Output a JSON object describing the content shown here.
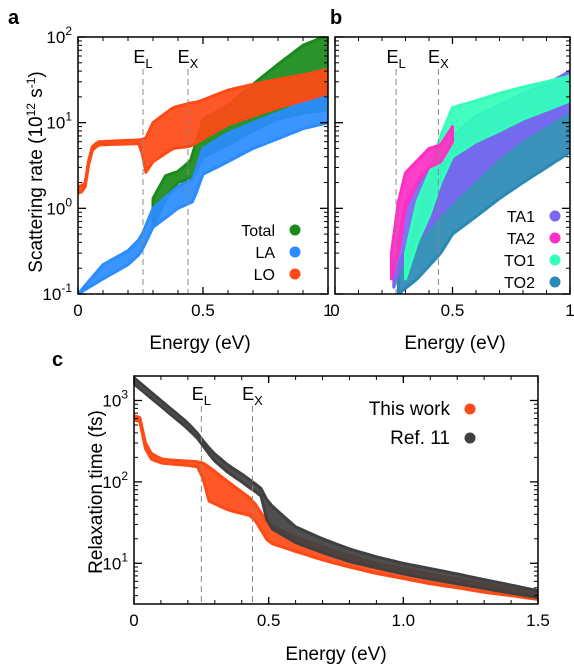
{
  "panels": [
    "a",
    "b",
    "c"
  ],
  "chart_data": [
    {
      "panel": "a",
      "type": "scatter",
      "xlabel": "Energy (eV)",
      "ylabel_prefix": "Scattering rate (10",
      "ylabel_exp1": "12",
      "ylabel_mid": " s",
      "ylabel_exp2": "-1",
      "ylabel_suffix": ")",
      "xlim": [
        0,
        1
      ],
      "ylim": [
        0.1,
        100
      ],
      "yscale": "log",
      "xticks": [
        {
          "v": 0,
          "label": "0"
        },
        {
          "v": 0.5,
          "label": "0.5"
        },
        {
          "v": 1,
          "label": "1"
        }
      ],
      "yticks": [
        {
          "v": 0.1,
          "base": "10",
          "exp": "-1"
        },
        {
          "v": 1,
          "base": "10",
          "exp": "0"
        },
        {
          "v": 10,
          "base": "10",
          "exp": "1"
        },
        {
          "v": 100,
          "base": "10",
          "exp": "2"
        }
      ],
      "legend": "bottom-right",
      "vlines": [
        {
          "x": 0.26,
          "base": "E",
          "sub": "L"
        },
        {
          "x": 0.44,
          "base": "E",
          "sub": "X"
        }
      ],
      "series": [
        {
          "name": "Total",
          "color": "#1a8a1a",
          "low": [
            [
              0.3,
              0.6
            ],
            [
              0.35,
              1.3
            ],
            [
              0.4,
              2.0
            ],
            [
              0.46,
              2.3
            ],
            [
              0.5,
              4.0
            ],
            [
              0.6,
              5.5
            ],
            [
              0.7,
              8.0
            ],
            [
              0.8,
              11
            ],
            [
              0.9,
              13
            ],
            [
              1.0,
              14
            ]
          ],
          "high": [
            [
              0.3,
              1.3
            ],
            [
              0.35,
              2.4
            ],
            [
              0.4,
              2.7
            ],
            [
              0.45,
              3.6
            ],
            [
              0.5,
              11
            ],
            [
              0.6,
              16
            ],
            [
              0.7,
              28
            ],
            [
              0.8,
              48
            ],
            [
              0.9,
              80
            ],
            [
              1.0,
              105
            ]
          ]
        },
        {
          "name": "LA",
          "color": "#2a8cff",
          "low": [
            [
              0.0,
              0.1
            ],
            [
              0.1,
              0.15
            ],
            [
              0.2,
              0.22
            ],
            [
              0.25,
              0.3
            ],
            [
              0.3,
              0.6
            ],
            [
              0.4,
              1.0
            ],
            [
              0.46,
              1.2
            ],
            [
              0.5,
              2.5
            ],
            [
              0.6,
              3.5
            ],
            [
              0.7,
              5.0
            ],
            [
              0.8,
              6.5
            ],
            [
              0.9,
              8.5
            ],
            [
              1.0,
              10
            ]
          ],
          "high": [
            [
              0.0,
              0.1
            ],
            [
              0.1,
              0.22
            ],
            [
              0.2,
              0.32
            ],
            [
              0.25,
              0.45
            ],
            [
              0.3,
              1.0
            ],
            [
              0.4,
              1.8
            ],
            [
              0.46,
              2.2
            ],
            [
              0.5,
              5.0
            ],
            [
              0.6,
              7.5
            ],
            [
              0.7,
              10
            ],
            [
              0.8,
              13
            ],
            [
              0.9,
              17
            ],
            [
              1.0,
              20
            ]
          ]
        },
        {
          "name": "LO",
          "color": "#ff4a16",
          "low": [
            [
              0.0,
              1.5
            ],
            [
              0.01,
              1.5
            ],
            [
              0.03,
              1.8
            ],
            [
              0.05,
              4.5
            ],
            [
              0.08,
              5.5
            ],
            [
              0.25,
              5.7
            ],
            [
              0.27,
              2.6
            ],
            [
              0.3,
              3.5
            ],
            [
              0.38,
              5.0
            ],
            [
              0.45,
              5.3
            ],
            [
              0.48,
              6.0
            ],
            [
              0.6,
              9.5
            ],
            [
              0.7,
              12
            ],
            [
              0.8,
              15
            ],
            [
              0.9,
              18
            ],
            [
              1.0,
              22
            ]
          ],
          "high": [
            [
              0.0,
              1.8
            ],
            [
              0.01,
              1.8
            ],
            [
              0.03,
              2.0
            ],
            [
              0.05,
              5.0
            ],
            [
              0.08,
              6.0
            ],
            [
              0.25,
              6.3
            ],
            [
              0.27,
              6.5
            ],
            [
              0.3,
              10
            ],
            [
              0.38,
              15
            ],
            [
              0.45,
              17
            ],
            [
              0.48,
              17.5
            ],
            [
              0.6,
              24
            ],
            [
              0.7,
              28
            ],
            [
              0.8,
              32
            ],
            [
              0.9,
              36
            ],
            [
              1.0,
              42
            ]
          ]
        }
      ]
    },
    {
      "panel": "b",
      "type": "scatter",
      "xlabel": "Energy (eV)",
      "xlim": [
        0,
        1
      ],
      "ylim": [
        0.1,
        100
      ],
      "yscale": "log",
      "xticks": [
        {
          "v": 0,
          "label": "0"
        },
        {
          "v": 0.5,
          "label": "0.5"
        },
        {
          "v": 1,
          "label": "1"
        }
      ],
      "legend": "bottom-right",
      "vlines": [
        {
          "x": 0.26,
          "base": "E",
          "sub": "L"
        },
        {
          "x": 0.44,
          "base": "E",
          "sub": "X"
        }
      ],
      "series": [
        {
          "name": "TO2",
          "color": "#2a8ab5",
          "low": [
            [
              0.27,
              0.1
            ],
            [
              0.35,
              0.15
            ],
            [
              0.45,
              0.3
            ],
            [
              0.5,
              0.5
            ],
            [
              0.6,
              0.8
            ],
            [
              0.7,
              1.3
            ],
            [
              0.8,
              2.0
            ],
            [
              0.9,
              3.0
            ],
            [
              1.0,
              4.5
            ]
          ],
          "high": [
            [
              0.27,
              0.2
            ],
            [
              0.35,
              0.8
            ],
            [
              0.45,
              2.0
            ],
            [
              0.5,
              5.0
            ],
            [
              0.6,
              6.5
            ],
            [
              0.7,
              8.5
            ],
            [
              0.8,
              11
            ],
            [
              0.9,
              15
            ],
            [
              1.0,
              20
            ]
          ]
        },
        {
          "name": "TA1",
          "color": "#7a66f2",
          "low": [
            [
              0.25,
              0.12
            ],
            [
              0.3,
              0.3
            ],
            [
              0.4,
              0.6
            ],
            [
              0.5,
              1.2
            ],
            [
              0.6,
              2.2
            ],
            [
              0.7,
              4.0
            ],
            [
              0.8,
              6.5
            ],
            [
              0.9,
              9.5
            ],
            [
              1.0,
              14
            ]
          ],
          "high": [
            [
              0.25,
              0.2
            ],
            [
              0.3,
              1.2
            ],
            [
              0.4,
              3.0
            ],
            [
              0.5,
              7.0
            ],
            [
              0.6,
              12
            ],
            [
              0.7,
              16
            ],
            [
              0.8,
              22
            ],
            [
              0.9,
              28
            ],
            [
              1.0,
              40
            ]
          ]
        },
        {
          "name": "TO1",
          "color": "#33ffbb",
          "low": [
            [
              0.3,
              0.15
            ],
            [
              0.35,
              0.4
            ],
            [
              0.4,
              0.8
            ],
            [
              0.45,
              2.0
            ],
            [
              0.5,
              4.0
            ],
            [
              0.6,
              6.0
            ],
            [
              0.7,
              8.0
            ],
            [
              0.8,
              11
            ],
            [
              0.9,
              14
            ],
            [
              1.0,
              18
            ]
          ],
          "high": [
            [
              0.3,
              0.3
            ],
            [
              0.35,
              1.2
            ],
            [
              0.4,
              2.5
            ],
            [
              0.45,
              7.0
            ],
            [
              0.5,
              15
            ],
            [
              0.6,
              18
            ],
            [
              0.7,
              22
            ],
            [
              0.8,
              26
            ],
            [
              0.9,
              30
            ],
            [
              1.0,
              35
            ]
          ]
        },
        {
          "name": "TA2",
          "color": "#ff2ec4",
          "low": [
            [
              0.24,
              0.15
            ],
            [
              0.27,
              0.3
            ],
            [
              0.3,
              1.0
            ],
            [
              0.35,
              2.0
            ],
            [
              0.4,
              3.0
            ],
            [
              0.45,
              3.5
            ],
            [
              0.5,
              6.0
            ]
          ],
          "high": [
            [
              0.24,
              0.3
            ],
            [
              0.27,
              1.2
            ],
            [
              0.3,
              2.6
            ],
            [
              0.35,
              3.6
            ],
            [
              0.4,
              5.0
            ],
            [
              0.45,
              5.5
            ],
            [
              0.5,
              9.0
            ]
          ]
        }
      ]
    },
    {
      "panel": "c",
      "type": "scatter",
      "xlabel": "Energy (eV)",
      "ylabel": "Relaxation time (fs)",
      "xlim": [
        0,
        1.5
      ],
      "ylim": [
        3.16,
        2000
      ],
      "yscale": "log",
      "xticks": [
        {
          "v": 0,
          "label": "0"
        },
        {
          "v": 0.5,
          "label": "0.5"
        },
        {
          "v": 1.0,
          "label": "1.0"
        },
        {
          "v": 1.5,
          "label": "1.5"
        }
      ],
      "yticks": [
        {
          "v": 10,
          "base": "10",
          "exp": "1"
        },
        {
          "v": 100,
          "base": "10",
          "exp": "2"
        },
        {
          "v": 1000,
          "base": "10",
          "exp": "3"
        }
      ],
      "legend": "top-right",
      "vlines": [
        {
          "x": 0.25,
          "base": "E",
          "sub": "L"
        },
        {
          "x": 0.44,
          "base": "E",
          "sub": "X"
        }
      ],
      "series": [
        {
          "name": "This work",
          "color": "#ff4a16",
          "low": [
            [
              0.0,
              580
            ],
            [
              0.02,
              580
            ],
            [
              0.03,
              400
            ],
            [
              0.05,
              200
            ],
            [
              0.1,
              170
            ],
            [
              0.2,
              160
            ],
            [
              0.25,
              150
            ],
            [
              0.27,
              60
            ],
            [
              0.35,
              45
            ],
            [
              0.44,
              38
            ],
            [
              0.5,
              18
            ],
            [
              0.6,
              14
            ],
            [
              0.7,
              11
            ],
            [
              0.8,
              9
            ],
            [
              0.9,
              7.5
            ],
            [
              1.0,
              6.5
            ],
            [
              1.1,
              5.6
            ],
            [
              1.2,
              5.0
            ],
            [
              1.3,
              4.4
            ],
            [
              1.4,
              4.0
            ],
            [
              1.5,
              3.6
            ]
          ],
          "high": [
            [
              0.0,
              650
            ],
            [
              0.02,
              650
            ],
            [
              0.03,
              450
            ],
            [
              0.05,
              240
            ],
            [
              0.1,
              190
            ],
            [
              0.2,
              180
            ],
            [
              0.25,
              175
            ],
            [
              0.27,
              160
            ],
            [
              0.35,
              100
            ],
            [
              0.44,
              60
            ],
            [
              0.5,
              30
            ],
            [
              0.6,
              21
            ],
            [
              0.7,
              16
            ],
            [
              0.8,
              12.5
            ],
            [
              0.9,
              10
            ],
            [
              1.0,
              8.6
            ],
            [
              1.1,
              7.4
            ],
            [
              1.2,
              6.4
            ],
            [
              1.3,
              5.6
            ],
            [
              1.4,
              4.9
            ],
            [
              1.5,
              4.3
            ]
          ]
        },
        {
          "name": "Ref. 11",
          "color": "#404040",
          "low": [
            [
              0.0,
              1600
            ],
            [
              0.1,
              850
            ],
            [
              0.2,
              450
            ],
            [
              0.24,
              330
            ],
            [
              0.27,
              240
            ],
            [
              0.3,
              180
            ],
            [
              0.35,
              130
            ],
            [
              0.4,
              100
            ],
            [
              0.44,
              80
            ],
            [
              0.47,
              70
            ],
            [
              0.5,
              28
            ],
            [
              0.6,
              18
            ],
            [
              0.7,
              13.5
            ],
            [
              0.8,
              10.5
            ],
            [
              0.9,
              8.8
            ],
            [
              1.0,
              7.4
            ],
            [
              1.1,
              6.4
            ],
            [
              1.2,
              5.6
            ],
            [
              1.3,
              4.9
            ],
            [
              1.4,
              4.3
            ],
            [
              1.5,
              3.8
            ]
          ],
          "high": [
            [
              0.0,
              1900
            ],
            [
              0.1,
              1000
            ],
            [
              0.2,
              530
            ],
            [
              0.24,
              380
            ],
            [
              0.27,
              280
            ],
            [
              0.3,
              220
            ],
            [
              0.35,
              160
            ],
            [
              0.4,
              125
            ],
            [
              0.44,
              100
            ],
            [
              0.47,
              85
            ],
            [
              0.5,
              55
            ],
            [
              0.6,
              28
            ],
            [
              0.7,
              20
            ],
            [
              0.8,
              15
            ],
            [
              0.9,
              12
            ],
            [
              1.0,
              10
            ],
            [
              1.1,
              8.6
            ],
            [
              1.2,
              7.4
            ],
            [
              1.3,
              6.3
            ],
            [
              1.4,
              5.4
            ],
            [
              1.5,
              4.6
            ]
          ]
        }
      ]
    }
  ]
}
